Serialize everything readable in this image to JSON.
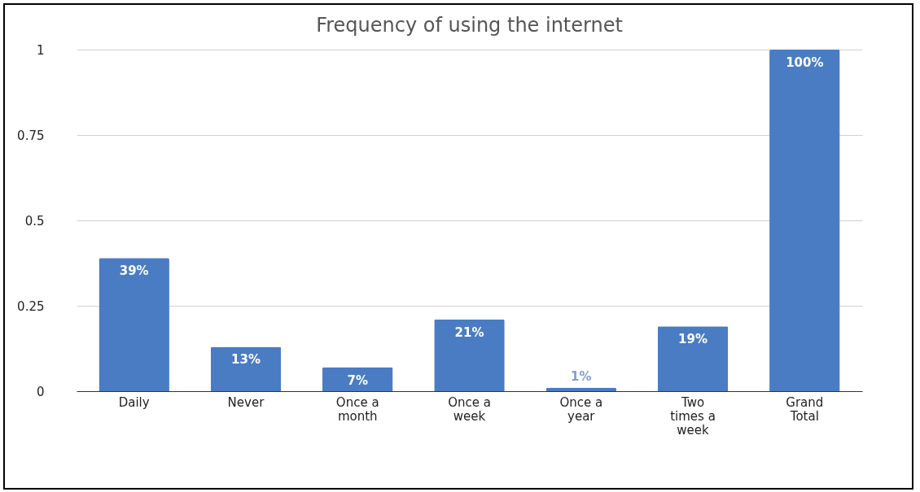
{
  "chart_data": {
    "type": "bar",
    "title": "Frequency of using the internet",
    "categories": [
      "Daily",
      "Never",
      "Once a month",
      "Once a week",
      "Once a year",
      "Two times a week",
      "Grand Total"
    ],
    "values": [
      0.39,
      0.13,
      0.07,
      0.21,
      0.01,
      0.19,
      1
    ],
    "value_labels": [
      "39%",
      "13%",
      "7%",
      "21%",
      "1%",
      "19%",
      "100%"
    ],
    "color": "#4a7cc4",
    "ylim": [
      0,
      1
    ],
    "yticks": [
      0,
      0.25,
      0.5,
      0.75,
      1
    ],
    "grid": "y"
  }
}
